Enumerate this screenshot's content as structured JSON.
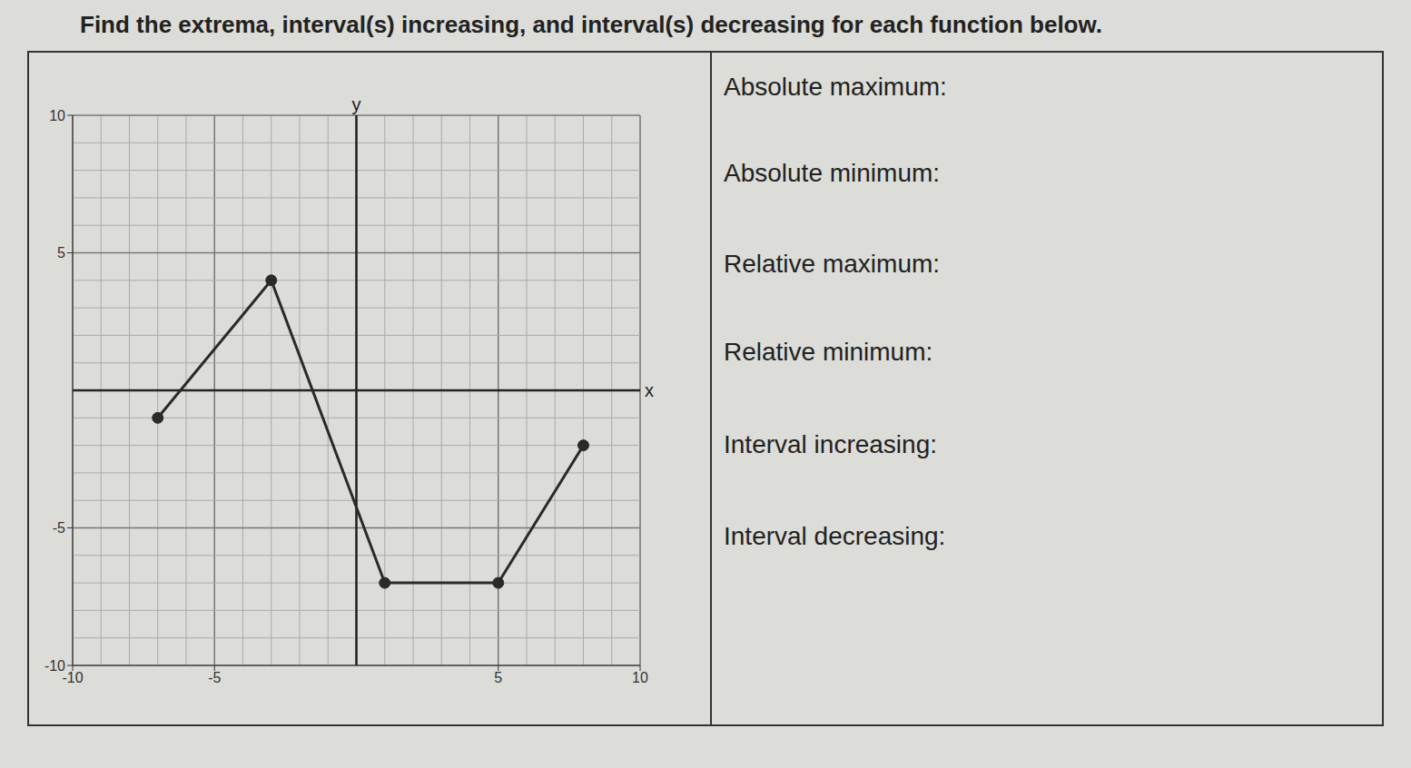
{
  "header": "Find the extrema, interval(s) increasing, and interval(s) decreasing for each function below.",
  "prompts": [
    "Absolute maximum:",
    "Absolute minimum:",
    "Relative maximum:",
    "Relative minimum:",
    "Interval increasing:",
    "Interval decreasing:"
  ],
  "chart_data": {
    "type": "line",
    "x": [
      -7,
      -3,
      1,
      5,
      8
    ],
    "values": [
      -1,
      4,
      -7,
      -7,
      -2
    ],
    "xlim": [
      -10,
      10
    ],
    "ylim": [
      -10,
      10
    ],
    "xticks": [
      -10,
      -5,
      5,
      10
    ],
    "yticks": [
      -10,
      -5,
      5,
      10
    ],
    "x_label": "x",
    "y_label": "y",
    "grid": true,
    "marker": "circle",
    "color": "#2a2a2a"
  }
}
